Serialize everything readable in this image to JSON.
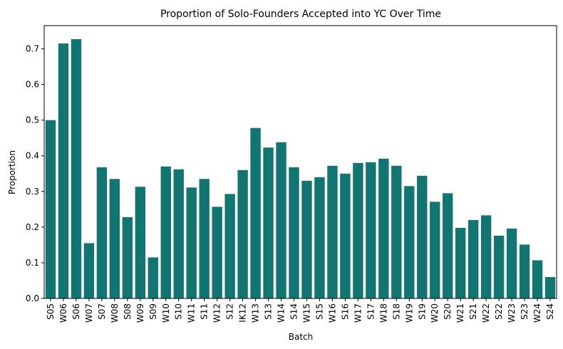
{
  "chart_data": {
    "type": "bar",
    "title": "Proportion of Solo-Founders Accepted into YC Over Time",
    "xlabel": "Batch",
    "ylabel": "Proportion",
    "ylim": [
      0,
      0.765
    ],
    "yticks": [
      "0.0",
      "0.1",
      "0.2",
      "0.3",
      "0.4",
      "0.5",
      "0.6",
      "0.7"
    ],
    "grid": false,
    "bar_color": "#117572",
    "categories": [
      "S05",
      "W06",
      "S06",
      "W07",
      "S07",
      "W08",
      "S08",
      "W09",
      "S09",
      "W10",
      "S10",
      "W11",
      "S11",
      "W12",
      "S12",
      "IK12",
      "W13",
      "S13",
      "W14",
      "S14",
      "W15",
      "S15",
      "W16",
      "S16",
      "W17",
      "S17",
      "W18",
      "S18",
      "W19",
      "S19",
      "W20",
      "S20",
      "W21",
      "S21",
      "W22",
      "S22",
      "W23",
      "S23",
      "W24",
      "S24"
    ],
    "values": [
      0.5,
      0.715,
      0.727,
      0.155,
      0.368,
      0.335,
      0.228,
      0.313,
      0.115,
      0.37,
      0.362,
      0.311,
      0.335,
      0.257,
      0.293,
      0.36,
      0.478,
      0.423,
      0.438,
      0.368,
      0.33,
      0.34,
      0.372,
      0.35,
      0.38,
      0.382,
      0.392,
      0.372,
      0.315,
      0.344,
      0.271,
      0.295,
      0.198,
      0.22,
      0.233,
      0.176,
      0.196,
      0.151,
      0.107,
      0.06
    ]
  }
}
